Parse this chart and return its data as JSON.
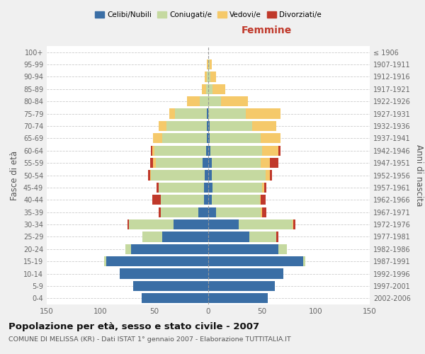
{
  "age_groups": [
    "0-4",
    "5-9",
    "10-14",
    "15-19",
    "20-24",
    "25-29",
    "30-34",
    "35-39",
    "40-44",
    "45-49",
    "50-54",
    "55-59",
    "60-64",
    "65-69",
    "70-74",
    "75-79",
    "80-84",
    "85-89",
    "90-94",
    "95-99",
    "100+"
  ],
  "birth_years": [
    "2002-2006",
    "1997-2001",
    "1992-1996",
    "1987-1991",
    "1982-1986",
    "1977-1981",
    "1972-1976",
    "1967-1971",
    "1962-1966",
    "1957-1961",
    "1952-1956",
    "1947-1951",
    "1942-1946",
    "1937-1941",
    "1932-1936",
    "1927-1931",
    "1922-1926",
    "1917-1921",
    "1912-1916",
    "1907-1911",
    "≤ 1906"
  ],
  "male": {
    "celibi": [
      62,
      70,
      82,
      95,
      72,
      43,
      32,
      9,
      4,
      4,
      3,
      5,
      2,
      1,
      1,
      1,
      0,
      0,
      0,
      0,
      0
    ],
    "coniugati": [
      0,
      0,
      0,
      2,
      5,
      18,
      42,
      35,
      40,
      42,
      50,
      44,
      48,
      42,
      38,
      30,
      8,
      2,
      1,
      0,
      0
    ],
    "vedovi": [
      0,
      0,
      0,
      0,
      0,
      0,
      0,
      0,
      0,
      0,
      1,
      2,
      2,
      8,
      7,
      5,
      12,
      4,
      2,
      1,
      0
    ],
    "divorziati": [
      0,
      0,
      0,
      0,
      0,
      0,
      1,
      2,
      8,
      2,
      2,
      3,
      1,
      0,
      0,
      0,
      0,
      0,
      0,
      0,
      0
    ]
  },
  "female": {
    "nubili": [
      55,
      62,
      70,
      88,
      65,
      38,
      28,
      7,
      3,
      4,
      3,
      3,
      2,
      1,
      1,
      0,
      0,
      0,
      0,
      0,
      0
    ],
    "coniugate": [
      0,
      0,
      0,
      2,
      8,
      25,
      50,
      42,
      45,
      46,
      50,
      46,
      48,
      48,
      40,
      35,
      12,
      4,
      2,
      1,
      0
    ],
    "vedove": [
      0,
      0,
      0,
      0,
      0,
      0,
      1,
      1,
      1,
      2,
      4,
      8,
      15,
      18,
      22,
      32,
      25,
      12,
      5,
      2,
      0
    ],
    "divorziate": [
      0,
      0,
      0,
      0,
      0,
      2,
      2,
      4,
      4,
      2,
      2,
      8,
      2,
      0,
      0,
      0,
      0,
      0,
      0,
      0,
      0
    ]
  },
  "colors": {
    "celibi_nubili": "#3a6ea5",
    "coniugati": "#c5d9a0",
    "vedovi": "#f5c96a",
    "divorziati": "#c0392b"
  },
  "xlim": 150,
  "title": "Popolazione per età, sesso e stato civile - 2007",
  "subtitle": "COMUNE DI MELISSA (KR) - Dati ISTAT 1° gennaio 2007 - Elaborazione TUTTITALIA.IT",
  "ylabel_left": "Fasce di età",
  "ylabel_right": "Anni di nascita",
  "xlabel_right": "Femmine",
  "bg_color": "#f0f0f0",
  "plot_bg": "#ffffff"
}
